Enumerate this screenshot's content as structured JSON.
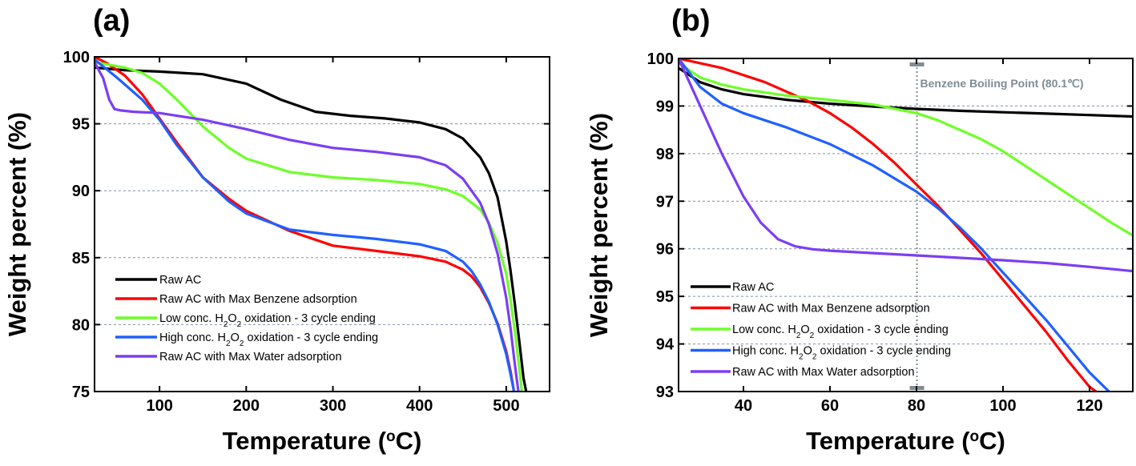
{
  "chart_data": [
    {
      "type": "line",
      "panel_label": "(a)",
      "xlabel": "Temperature (",
      "xlabel_unit_sup": "o",
      "xlabel_unit": "C)",
      "ylabel": "Weight percent (%)",
      "xlim": [
        25,
        550
      ],
      "ylim": [
        75,
        100
      ],
      "xticks": [
        "100",
        "200",
        "300",
        "400",
        "500"
      ],
      "xtick_values": [
        100,
        200,
        300,
        400,
        500
      ],
      "yticks": [
        "75",
        "80",
        "85",
        "90",
        "95",
        "100"
      ],
      "ytick_values": [
        75,
        80,
        85,
        90,
        95,
        100
      ],
      "grid": "horizontal-dashed",
      "legend_position": "bottom-left",
      "series": [
        {
          "name": "Raw AC",
          "color": "#000000",
          "x": [
            25,
            60,
            100,
            150,
            200,
            240,
            280,
            320,
            360,
            400,
            430,
            450,
            470,
            480,
            490,
            500,
            505,
            510,
            515,
            520,
            523
          ],
          "y": [
            99.2,
            99.0,
            98.9,
            98.7,
            98.0,
            96.8,
            95.9,
            95.6,
            95.4,
            95.1,
            94.6,
            93.9,
            92.5,
            91.3,
            89.5,
            86.2,
            84.0,
            81.5,
            78.8,
            76.0,
            75.0
          ]
        },
        {
          "name": "Raw AC with Max Benzene adsorption",
          "color": "#ff0000",
          "x": [
            25,
            40,
            60,
            80,
            100,
            120,
            150,
            180,
            200,
            250,
            300,
            350,
            400,
            430,
            450,
            460,
            470,
            480,
            490,
            500,
            505,
            509
          ],
          "y": [
            100,
            99.5,
            98.6,
            97.2,
            95.4,
            93.6,
            91.0,
            89.4,
            88.5,
            87.0,
            85.9,
            85.5,
            85.1,
            84.7,
            84.1,
            83.6,
            82.8,
            81.6,
            80.1,
            78.0,
            76.5,
            75.0
          ]
        },
        {
          "name": "Low conc. H2O2 oxidation - 3 cycle ending",
          "color": "#6dff28",
          "x": [
            25,
            60,
            80,
            100,
            120,
            150,
            180,
            200,
            250,
            300,
            350,
            400,
            430,
            450,
            470,
            480,
            490,
            500,
            505,
            510,
            515,
            518
          ],
          "y": [
            99.6,
            99.2,
            98.8,
            98.0,
            96.8,
            94.8,
            93.2,
            92.4,
            91.4,
            91.0,
            90.8,
            90.5,
            90.1,
            89.6,
            88.6,
            87.6,
            86.1,
            83.8,
            81.8,
            79.5,
            76.8,
            75.0
          ]
        },
        {
          "name": "High conc. H2O2 oxidation - 3 cycle ending",
          "color": "#2060ff",
          "x": [
            25,
            50,
            80,
            100,
            120,
            150,
            180,
            200,
            250,
            300,
            350,
            400,
            430,
            450,
            460,
            470,
            480,
            490,
            500,
            505,
            509
          ],
          "y": [
            99.8,
            98.5,
            96.8,
            95.3,
            93.4,
            91.0,
            89.2,
            88.3,
            87.1,
            86.7,
            86.4,
            86.0,
            85.5,
            84.7,
            84.0,
            83.0,
            81.7,
            80.0,
            77.8,
            76.3,
            75.0
          ]
        },
        {
          "name": "Raw AC with Max Water adsorption",
          "color": "#7b3ff2",
          "x": [
            25,
            35,
            42,
            48,
            55,
            70,
            100,
            150,
            200,
            250,
            300,
            350,
            400,
            430,
            450,
            470,
            480,
            490,
            500,
            505,
            510,
            514
          ],
          "y": [
            99.6,
            98.4,
            96.8,
            96.1,
            96.0,
            95.9,
            95.8,
            95.3,
            94.6,
            93.8,
            93.2,
            92.9,
            92.5,
            91.9,
            90.9,
            89.1,
            87.5,
            85.3,
            82.0,
            79.7,
            77.0,
            75.0
          ]
        }
      ]
    },
    {
      "type": "line",
      "panel_label": "(b)",
      "xlabel": "Temperature (",
      "xlabel_unit_sup": "o",
      "xlabel_unit": "C)",
      "ylabel": "Weight percent (%)",
      "xlim": [
        25,
        130
      ],
      "ylim": [
        93,
        100
      ],
      "xticks": [
        "40",
        "60",
        "80",
        "100",
        "120"
      ],
      "xtick_values": [
        40,
        60,
        80,
        100,
        120
      ],
      "yticks": [
        "93",
        "94",
        "95",
        "96",
        "97",
        "98",
        "99",
        "100"
      ],
      "ytick_values": [
        93,
        94,
        95,
        96,
        97,
        98,
        99,
        100
      ],
      "grid": "horizontal-dashed",
      "legend_position": "bottom-left",
      "annotation": {
        "text": "Benzene Boiling Point (80.1℃)",
        "x": 80.1,
        "color": "#7f8c94"
      },
      "series": [
        {
          "name": "Raw AC",
          "color": "#000000",
          "x": [
            25,
            30,
            35,
            40,
            50,
            60,
            70,
            80,
            90,
            100,
            110,
            120,
            130
          ],
          "y": [
            99.8,
            99.5,
            99.35,
            99.25,
            99.13,
            99.05,
            98.99,
            98.94,
            98.9,
            98.87,
            98.84,
            98.81,
            98.78
          ]
        },
        {
          "name": "Raw AC with Max Benzene adsorption",
          "color": "#ff0000",
          "x": [
            25,
            35,
            45,
            55,
            60,
            65,
            70,
            75,
            80,
            85,
            90,
            95,
            100,
            105,
            110,
            115,
            120,
            121.5
          ],
          "y": [
            100,
            99.8,
            99.5,
            99.1,
            98.85,
            98.55,
            98.2,
            97.8,
            97.35,
            96.9,
            96.4,
            95.9,
            95.35,
            94.8,
            94.25,
            93.65,
            93.1,
            93.0
          ]
        },
        {
          "name": "Low conc. H2O2 oxidation - 3 cycle ending",
          "color": "#6dff28",
          "x": [
            25,
            30,
            35,
            40,
            50,
            60,
            70,
            80,
            85,
            90,
            95,
            100,
            105,
            110,
            115,
            120,
            125,
            130
          ],
          "y": [
            99.9,
            99.6,
            99.45,
            99.35,
            99.22,
            99.13,
            99.03,
            98.85,
            98.7,
            98.5,
            98.3,
            98.05,
            97.75,
            97.45,
            97.15,
            96.85,
            96.55,
            96.28
          ]
        },
        {
          "name": "High conc. H2O2 oxidation - 3 cycle ending",
          "color": "#2060ff",
          "x": [
            25,
            30,
            35,
            40,
            45,
            50,
            60,
            70,
            80,
            85,
            90,
            95,
            100,
            105,
            110,
            115,
            120,
            124.5
          ],
          "y": [
            100,
            99.4,
            99.05,
            98.85,
            98.7,
            98.55,
            98.2,
            97.75,
            97.2,
            96.85,
            96.45,
            96.0,
            95.5,
            95.0,
            94.5,
            93.95,
            93.4,
            93.0
          ]
        },
        {
          "name": "Raw AC with Max Water adsorption",
          "color": "#7b3ff2",
          "x": [
            25,
            30,
            35,
            40,
            44,
            48,
            52,
            56,
            60,
            70,
            80,
            90,
            100,
            110,
            120,
            130
          ],
          "y": [
            100,
            99.0,
            98.0,
            97.1,
            96.55,
            96.2,
            96.05,
            95.99,
            95.96,
            95.91,
            95.86,
            95.81,
            95.76,
            95.7,
            95.62,
            95.53
          ]
        }
      ]
    }
  ]
}
